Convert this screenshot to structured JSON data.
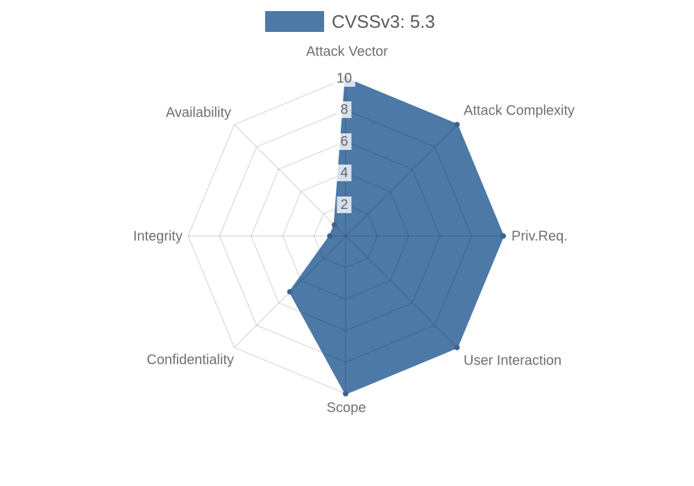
{
  "page": {
    "background": "#ffffff"
  },
  "legend": {
    "label": "CVSSv3: 5.3",
    "position": "top"
  },
  "chart_data": {
    "type": "radar",
    "title": "CVSSv3: 5.3",
    "categories": [
      "Attack Vector",
      "Attack Complexity",
      "Priv.Req.",
      "User Interaction",
      "Scope",
      "Confidentiality",
      "Integrity",
      "Availability"
    ],
    "series": [
      {
        "name": "CVSSv3: 5.3",
        "values": [
          10,
          10,
          10,
          10,
          10,
          5,
          1,
          1
        ]
      }
    ],
    "ticks": [
      2,
      4,
      6,
      8,
      10
    ],
    "rmin": 0,
    "rmax": 10,
    "grid": "polygon-web",
    "legend_position": "top",
    "colors": {
      "fill": "#4d79a7",
      "stroke": "#4d79a7",
      "point": "#3c648f",
      "grid": "rgba(0,0,0,0.16)",
      "axis_label": "#6f6f6f",
      "tick_label": "#666666",
      "tick_backdrop": "rgba(255,255,255,0.78)",
      "legend_text": "#58595b"
    }
  }
}
